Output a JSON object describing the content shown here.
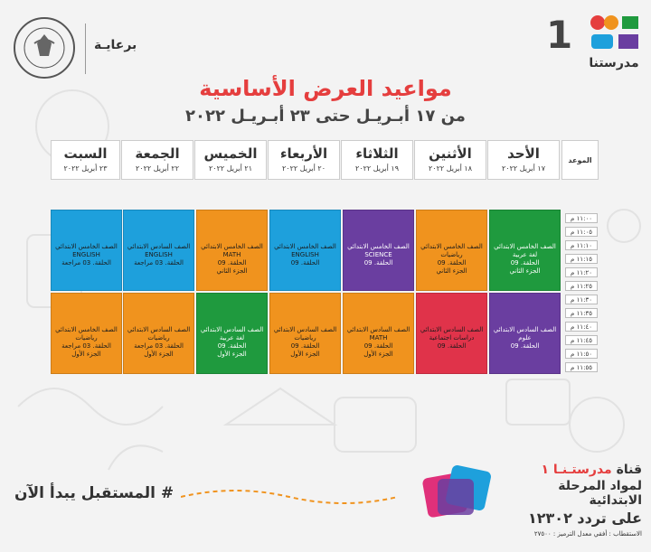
{
  "header": {
    "channel_number": "1",
    "brand_name": "مدرستنا",
    "sponsor_label": "برعايـة",
    "ministry_seal_text": "MINISTRY OF EDUCATION AND TECHNICAL EDUCATION"
  },
  "title": "مواعيد العرض الأساسية",
  "subtitle": "من ١٧ أبـريـل حتى ٢٣ أبـريـل ٢٠٢٢",
  "time_column_label": "الموعد",
  "days": [
    {
      "name": "الأحد",
      "date": "١٧ أبريل ٢٠٢٢"
    },
    {
      "name": "الأثنين",
      "date": "١٨ أبريل ٢٠٢٢"
    },
    {
      "name": "الثلاثاء",
      "date": "١٩ أبريل ٢٠٢٢"
    },
    {
      "name": "الأربعاء",
      "date": "٢٠ أبريل ٢٠٢٢"
    },
    {
      "name": "الخميس",
      "date": "٢١ أبريل ٢٠٢٢"
    },
    {
      "name": "الجمعة",
      "date": "٢٢ أبريل ٢٠٢٢"
    },
    {
      "name": "السبت",
      "date": "٢٣ أبريل ٢٠٢٢"
    }
  ],
  "time_slots": [
    "١١:٠٠ م",
    "١١:٠٥ م",
    "١١:١٠ م",
    "١١:١٥ م",
    "١١:٢٠ م",
    "١١:٢٥ م",
    "١١:٣٠ م",
    "١١:٣٥ م",
    "١١:٤٠ م",
    "١١:٤٥ م",
    "١١:٥٠ م",
    "١١:٥٥ م"
  ],
  "first_block": [
    {
      "day": "الأحد",
      "color": "#1f9a3e",
      "lines": [
        "الصف الخامس الابتدائي",
        "لغة عربية",
        "الحلقة. 09",
        "الجزء الثاني"
      ]
    },
    {
      "day": "الأثنين",
      "color": "#f0931e",
      "lines": [
        "الصف الخامس الابتدائي",
        "رياضيات",
        "الحلقة. 09",
        "الجزء الثاني"
      ]
    },
    {
      "day": "الثلاثاء",
      "color": "#6a3ea0",
      "lines": [
        "الصف الخامس الابتدائي",
        "SCIENCE",
        "الحلقة. 09"
      ]
    },
    {
      "day": "الأربعاء",
      "color": "#1ea0dc",
      "lines": [
        "الصف الخامس الابتدائي",
        "ENGLISH",
        "الحلقة. 09"
      ]
    },
    {
      "day": "الخميس",
      "color": "#f0931e",
      "lines": [
        "الصف الخامس الابتدائي",
        "MATH",
        "الحلقة. 09",
        "الجزء الثاني"
      ]
    },
    {
      "day": "الجمعة",
      "color": "#1ea0dc",
      "lines": [
        "الصف السادس الابتدائي",
        "ENGLISH",
        "الحلقة. 03 مراجعة"
      ]
    },
    {
      "day": "السبت",
      "color": "#1ea0dc",
      "lines": [
        "الصف الخامس الابتدائي",
        "ENGLISH",
        "الحلقة. 03 مراجعة"
      ]
    }
  ],
  "second_block": [
    {
      "day": "الأحد",
      "color": "#6a3ea0",
      "lines": [
        "الصف السادس الابتدائي",
        "علوم",
        "الحلقة. 09"
      ]
    },
    {
      "day": "الأثنين",
      "color": "#e0334a",
      "lines": [
        "الصف السادس الابتدائي",
        "دراسات اجتماعية",
        "الحلقة. 09"
      ]
    },
    {
      "day": "الثلاثاء",
      "color": "#f0931e",
      "lines": [
        "الصف السادس الابتدائي",
        "MATH",
        "الحلقة. 09",
        "الجزء الأول"
      ]
    },
    {
      "day": "الأربعاء",
      "color": "#f0931e",
      "lines": [
        "الصف السادس الابتدائي",
        "رياضيات",
        "الحلقة. 09",
        "الجزء الأول"
      ]
    },
    {
      "day": "الخميس",
      "color": "#1f9a3e",
      "lines": [
        "الصف السادس الابتدائي",
        "لغة عربية",
        "الحلقة. 09",
        "الجزء الأول"
      ]
    },
    {
      "day": "الجمعة",
      "color": "#f0931e",
      "lines": [
        "الصف السادس الابتدائي",
        "رياضيات",
        "الحلقة. 03 مراجعة",
        "الجزء الأول"
      ]
    },
    {
      "day": "السبت",
      "color": "#f0931e",
      "lines": [
        "الصف الخامس الابتدائي",
        "رياضيات",
        "الحلقة. 03 مراجعة",
        "الجزء الأول"
      ]
    }
  ],
  "footer": {
    "slogan": "# المستقبل يبدأ الآن",
    "channel_line_prefix": "قناة",
    "channel_line_highlight": "مدرستـنـا ١",
    "channel_line2": "لمواد المرحلة الابتدائية",
    "channel_line3": "على تردد ١٢٣٠٢",
    "reception_note": "الاستقطاب : أفقي معدل الترميز : ٢٧٥٠٠"
  }
}
